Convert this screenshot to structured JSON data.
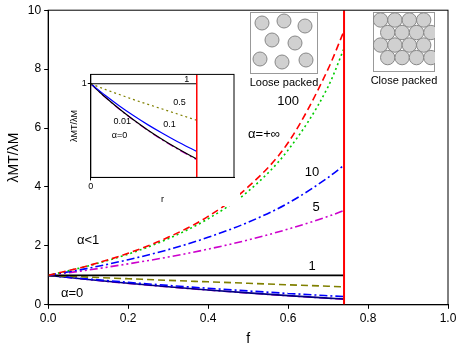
{
  "chart_data": [
    {
      "type": "line",
      "x_label": "f",
      "y_label": "λMT/λM",
      "x": [
        0,
        0.1,
        0.2,
        0.3,
        0.4,
        0.5,
        0.6,
        0.7,
        0.74
      ],
      "series": [
        {
          "color": "#ff0000",
          "line_style": "dashed",
          "values": [
            1,
            1.33,
            1.75,
            2.29,
            3.0,
            4.0,
            5.5,
            8.0,
            9.3
          ]
        },
        {
          "color": "#00cc00",
          "line_style": "dotted",
          "values": [
            1,
            1.32,
            1.72,
            2.24,
            2.92,
            3.85,
            5.25,
            7.4,
            8.7
          ]
        },
        {
          "color": "#0000ff",
          "line_style": "dashdot",
          "values": [
            1,
            1.24,
            1.53,
            1.87,
            2.29,
            2.8,
            3.45,
            4.32,
            4.74
          ]
        },
        {
          "color": "#cc00cc",
          "line_style": "dashdotdot",
          "values": [
            1,
            1.18,
            1.39,
            1.62,
            1.89,
            2.2,
            2.57,
            3.0,
            3.2
          ]
        },
        {
          "color": "#000000",
          "line_style": "solid",
          "values": [
            1,
            1,
            1,
            1,
            1,
            1,
            1,
            1,
            1
          ]
        },
        {
          "color": "#808000",
          "line_style": "dashed",
          "values": [
            1,
            0.94,
            0.885,
            0.83,
            0.78,
            0.73,
            0.68,
            0.63,
            0.61
          ]
        },
        {
          "color": "#0000ff",
          "line_style": "dashdot",
          "values": [
            1,
            0.877,
            0.763,
            0.658,
            0.561,
            0.471,
            0.386,
            0.308,
            0.278
          ]
        },
        {
          "color": "#000080",
          "line_style": "solid",
          "values": [
            1,
            0.858,
            0.73,
            0.612,
            0.504,
            0.405,
            0.313,
            0.228,
            0.196
          ]
        },
        {
          "color": "#cc00cc",
          "line_style": "dashdot",
          "values": [
            1,
            0.857,
            0.727,
            0.609,
            0.5,
            0.4,
            0.308,
            0.222,
            0.19
          ]
        }
      ],
      "xlim": [
        0,
        1
      ],
      "xticks": [
        {
          "value": 0,
          "label": "0.0"
        },
        {
          "value": 0.2,
          "label": "0.2"
        },
        {
          "value": 0.4,
          "label": "0.4"
        },
        {
          "value": 0.6,
          "label": "0.6"
        },
        {
          "value": 0.8,
          "label": "0.8"
        },
        {
          "value": 1,
          "label": "1.0"
        }
      ],
      "ylim": [
        0,
        10
      ],
      "yticks": [
        0,
        2,
        4,
        6,
        8,
        10
      ],
      "grid": false,
      "vertical_line": {
        "x": 0.74,
        "color": "#ff0000"
      },
      "annotations": [
        {
          "text": "α=+∞",
          "x": 0.54,
          "y": 5.8
        },
        {
          "text": "100",
          "x": 0.6,
          "y": 6.9
        },
        {
          "text": "10",
          "x": 0.66,
          "y": 4.5
        },
        {
          "text": "5",
          "x": 0.67,
          "y": 3.3
        },
        {
          "text": "1",
          "x": 0.66,
          "y": 1.3
        },
        {
          "text": "α<1",
          "x": 0.1,
          "y": 2.2
        },
        {
          "text": "α=0",
          "x": 0.06,
          "y": 0.4
        }
      ]
    },
    {
      "type": "line",
      "x_label": "r",
      "y_label": "λMT/λM",
      "x": [
        0,
        0.1,
        0.2,
        0.3,
        0.4,
        0.5,
        0.6,
        0.7,
        0.74
      ],
      "series": [
        {
          "color": "#000000",
          "line_style": "solid",
          "values": [
            1,
            1,
            1,
            1,
            1,
            1,
            1,
            1,
            1
          ]
        },
        {
          "color": "#808000",
          "line_style": "dotted",
          "values": [
            1,
            0.94,
            0.885,
            0.83,
            0.78,
            0.73,
            0.68,
            0.63,
            0.61
          ]
        },
        {
          "color": "#0000ff",
          "line_style": "solid",
          "values": [
            1,
            0.877,
            0.763,
            0.658,
            0.561,
            0.471,
            0.386,
            0.308,
            0.278
          ]
        },
        {
          "color": "#000000",
          "line_style": "solid",
          "values": [
            1,
            0.858,
            0.73,
            0.612,
            0.504,
            0.405,
            0.313,
            0.228,
            0.196
          ]
        },
        {
          "color": "#cc00cc",
          "line_style": "dashdot",
          "values": [
            1,
            0.857,
            0.727,
            0.609,
            0.5,
            0.4,
            0.308,
            0.222,
            0.19
          ]
        }
      ],
      "xlim": [
        0,
        1
      ],
      "xticks": [
        0
      ],
      "ylim": [
        0,
        1.1
      ],
      "yticks": [
        1
      ],
      "grid": false,
      "vertical_line": {
        "x": 0.74,
        "color": "#ff0000"
      },
      "annotations": [
        {
          "text": "1",
          "x": 0.67,
          "y": 1.05
        },
        {
          "text": "0.5",
          "x": 0.62,
          "y": 0.8
        },
        {
          "text": "0.1",
          "x": 0.55,
          "y": 0.56
        },
        {
          "text": "0.01",
          "x": 0.22,
          "y": 0.6
        },
        {
          "text": "α=0",
          "x": 0.2,
          "y": 0.45
        }
      ]
    }
  ],
  "diagrams": [
    {
      "label": "Loose packed"
    },
    {
      "label": "Close packed"
    }
  ]
}
